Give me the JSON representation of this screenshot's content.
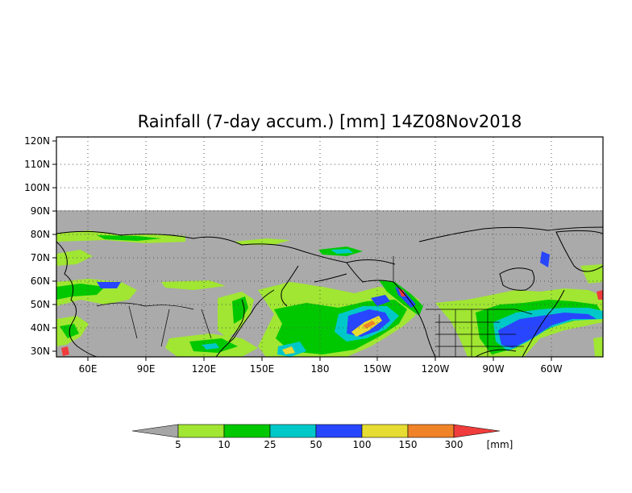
{
  "title": "Rainfall (7-day accum.) [mm] 14Z08Nov2018",
  "axes": {
    "lat_ticks": [
      "120N",
      "110N",
      "100N",
      "90N",
      "80N",
      "70N",
      "60N",
      "50N",
      "40N",
      "30N"
    ],
    "lon_ticks": [
      "60E",
      "90E",
      "120E",
      "150E",
      "180",
      "150W",
      "120W",
      "90W",
      "60W"
    ],
    "lat_range": [
      28,
      125
    ],
    "lon_range": [
      40,
      320
    ]
  },
  "colorbar": {
    "levels": [
      "5",
      "10",
      "25",
      "50",
      "100",
      "150",
      "300"
    ],
    "unit": "[mm]",
    "colors": [
      "#a6a6a6",
      "#a0e632",
      "#00c800",
      "#00c8c8",
      "#2846ff",
      "#e6dc32",
      "#f08228",
      "#f03c3c"
    ]
  },
  "colors": {
    "land_no_data": "#aaaaaa",
    "background": "#ffffff",
    "grid": "#555555"
  }
}
